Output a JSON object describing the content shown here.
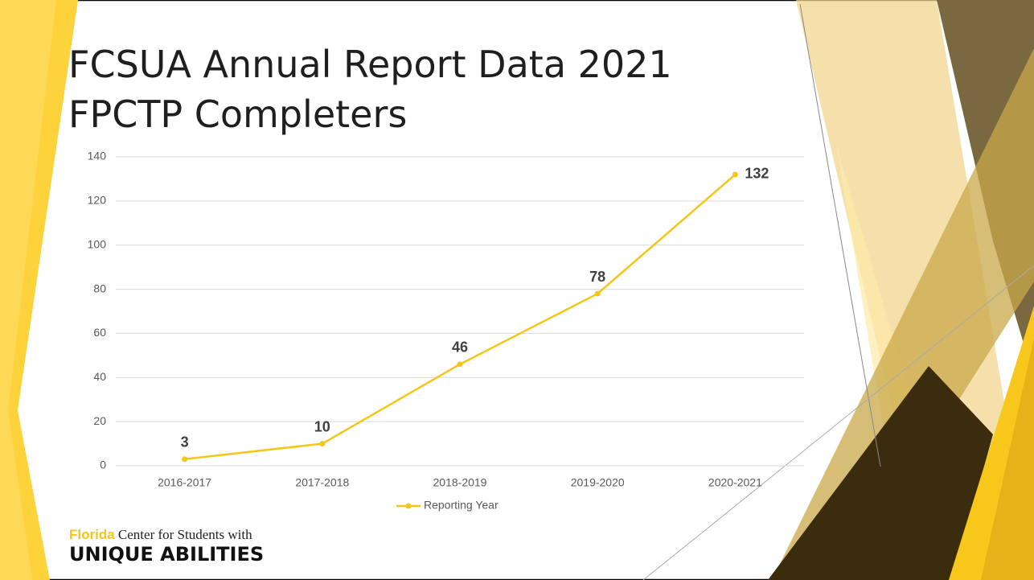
{
  "chart_data": {
    "type": "line",
    "title": "FCSUA Annual Report Data 2021",
    "subtitle": "FPCTP Completers",
    "categories": [
      "2016-2017",
      "2017-2018",
      "2018-2019",
      "2019-2020",
      "2020-2021"
    ],
    "series": [
      {
        "name": "Reporting Year",
        "color": "#f5c518",
        "values": [
          3,
          10,
          46,
          78,
          132
        ]
      }
    ],
    "ylim": [
      0,
      140
    ],
    "yticks": [
      0,
      20,
      40,
      60,
      80,
      100,
      120,
      140
    ],
    "grid": true,
    "legend": "bottom"
  },
  "logo": {
    "highlight": "Florida",
    "line1": "Center for Students with",
    "line2": "UNIQUE ABILITIES"
  }
}
